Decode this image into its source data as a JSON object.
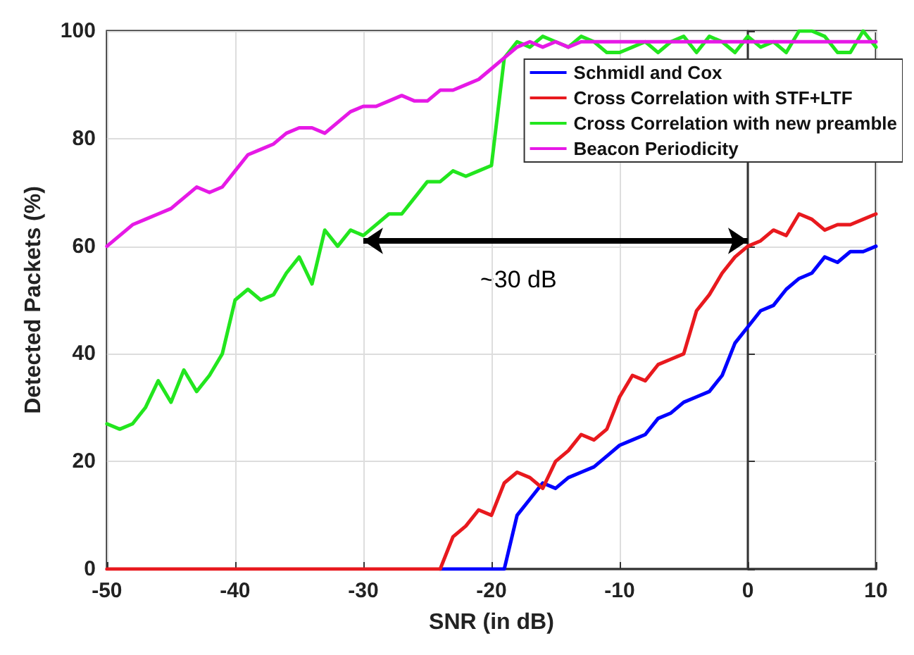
{
  "chart_data": {
    "type": "line",
    "xlabel": "SNR (in dB)",
    "ylabel": "Detected Packets (%)",
    "x": [
      -50,
      -49,
      -48,
      -47,
      -46,
      -45,
      -44,
      -43,
      -42,
      -41,
      -40,
      -39,
      -38,
      -37,
      -36,
      -35,
      -34,
      -33,
      -32,
      -31,
      -30,
      -29,
      -28,
      -27,
      -26,
      -25,
      -24,
      -23,
      -22,
      -21,
      -20,
      -19,
      -18,
      -17,
      -16,
      -15,
      -14,
      -13,
      -12,
      -11,
      -10,
      -9,
      -8,
      -7,
      -6,
      -5,
      -4,
      -3,
      -2,
      -1,
      0,
      1,
      2,
      3,
      4,
      5,
      6,
      7,
      8,
      9,
      10
    ],
    "series": [
      {
        "name": "Schmidl and Cox",
        "color": "#0000ff",
        "values": [
          null,
          null,
          null,
          null,
          null,
          null,
          null,
          null,
          null,
          null,
          null,
          null,
          null,
          null,
          null,
          null,
          null,
          null,
          null,
          null,
          null,
          null,
          null,
          null,
          null,
          null,
          0,
          0,
          0,
          0,
          0,
          0,
          10,
          13,
          16,
          15,
          17,
          18,
          19,
          21,
          23,
          24,
          25,
          28,
          29,
          31,
          32,
          33,
          36,
          42,
          45,
          48,
          49,
          52,
          54,
          55,
          58,
          57,
          59,
          59,
          60
        ]
      },
      {
        "name": "Cross Correlation with STF+LTF",
        "color": "#e8191e",
        "values": [
          0,
          0,
          0,
          0,
          0,
          0,
          0,
          0,
          0,
          0,
          0,
          0,
          0,
          0,
          0,
          0,
          0,
          0,
          0,
          0,
          0,
          0,
          0,
          0,
          0,
          0,
          0,
          6,
          8,
          11,
          10,
          16,
          18,
          17,
          15,
          20,
          22,
          25,
          24,
          26,
          32,
          36,
          35,
          38,
          39,
          40,
          48,
          51,
          55,
          58,
          60,
          61,
          63,
          62,
          66,
          65,
          63,
          64,
          64,
          65,
          66
        ]
      },
      {
        "name": "Cross Correlation with new preamble",
        "color": "#22e61e",
        "values": [
          27,
          26,
          27,
          30,
          35,
          31,
          37,
          33,
          36,
          40,
          50,
          52,
          50,
          51,
          55,
          58,
          53,
          63,
          60,
          63,
          62,
          64,
          66,
          66,
          69,
          72,
          72,
          74,
          73,
          74,
          75,
          95,
          98,
          97,
          99,
          98,
          97,
          99,
          98,
          96,
          96,
          97,
          98,
          96,
          98,
          99,
          96,
          99,
          98,
          96,
          99,
          97,
          98,
          96,
          100,
          100,
          99,
          96,
          96,
          100,
          97
        ]
      },
      {
        "name": "Beacon Periodicity",
        "color": "#e619e6",
        "values": [
          60,
          62,
          64,
          65,
          66,
          67,
          69,
          71,
          70,
          71,
          74,
          77,
          78,
          79,
          81,
          82,
          82,
          81,
          83,
          85,
          86,
          86,
          87,
          88,
          87,
          87,
          89,
          89,
          90,
          91,
          93,
          95,
          97,
          98,
          97,
          98,
          97,
          98,
          98,
          98,
          98,
          98,
          98,
          98,
          98,
          98,
          98,
          98,
          98,
          98,
          98,
          98,
          98,
          98,
          98,
          98,
          98,
          98,
          98,
          98,
          98
        ]
      }
    ],
    "xlim": [
      -50,
      10
    ],
    "xticks": [
      -50,
      -40,
      -30,
      -20,
      -10,
      0,
      10
    ],
    "ylim": [
      0,
      100
    ],
    "yticks": [
      0,
      20,
      40,
      60,
      80,
      100
    ],
    "annotations": [
      "~30 dB"
    ],
    "grid": true,
    "legend": "top right",
    "marker": "none",
    "line_style": "solid"
  }
}
